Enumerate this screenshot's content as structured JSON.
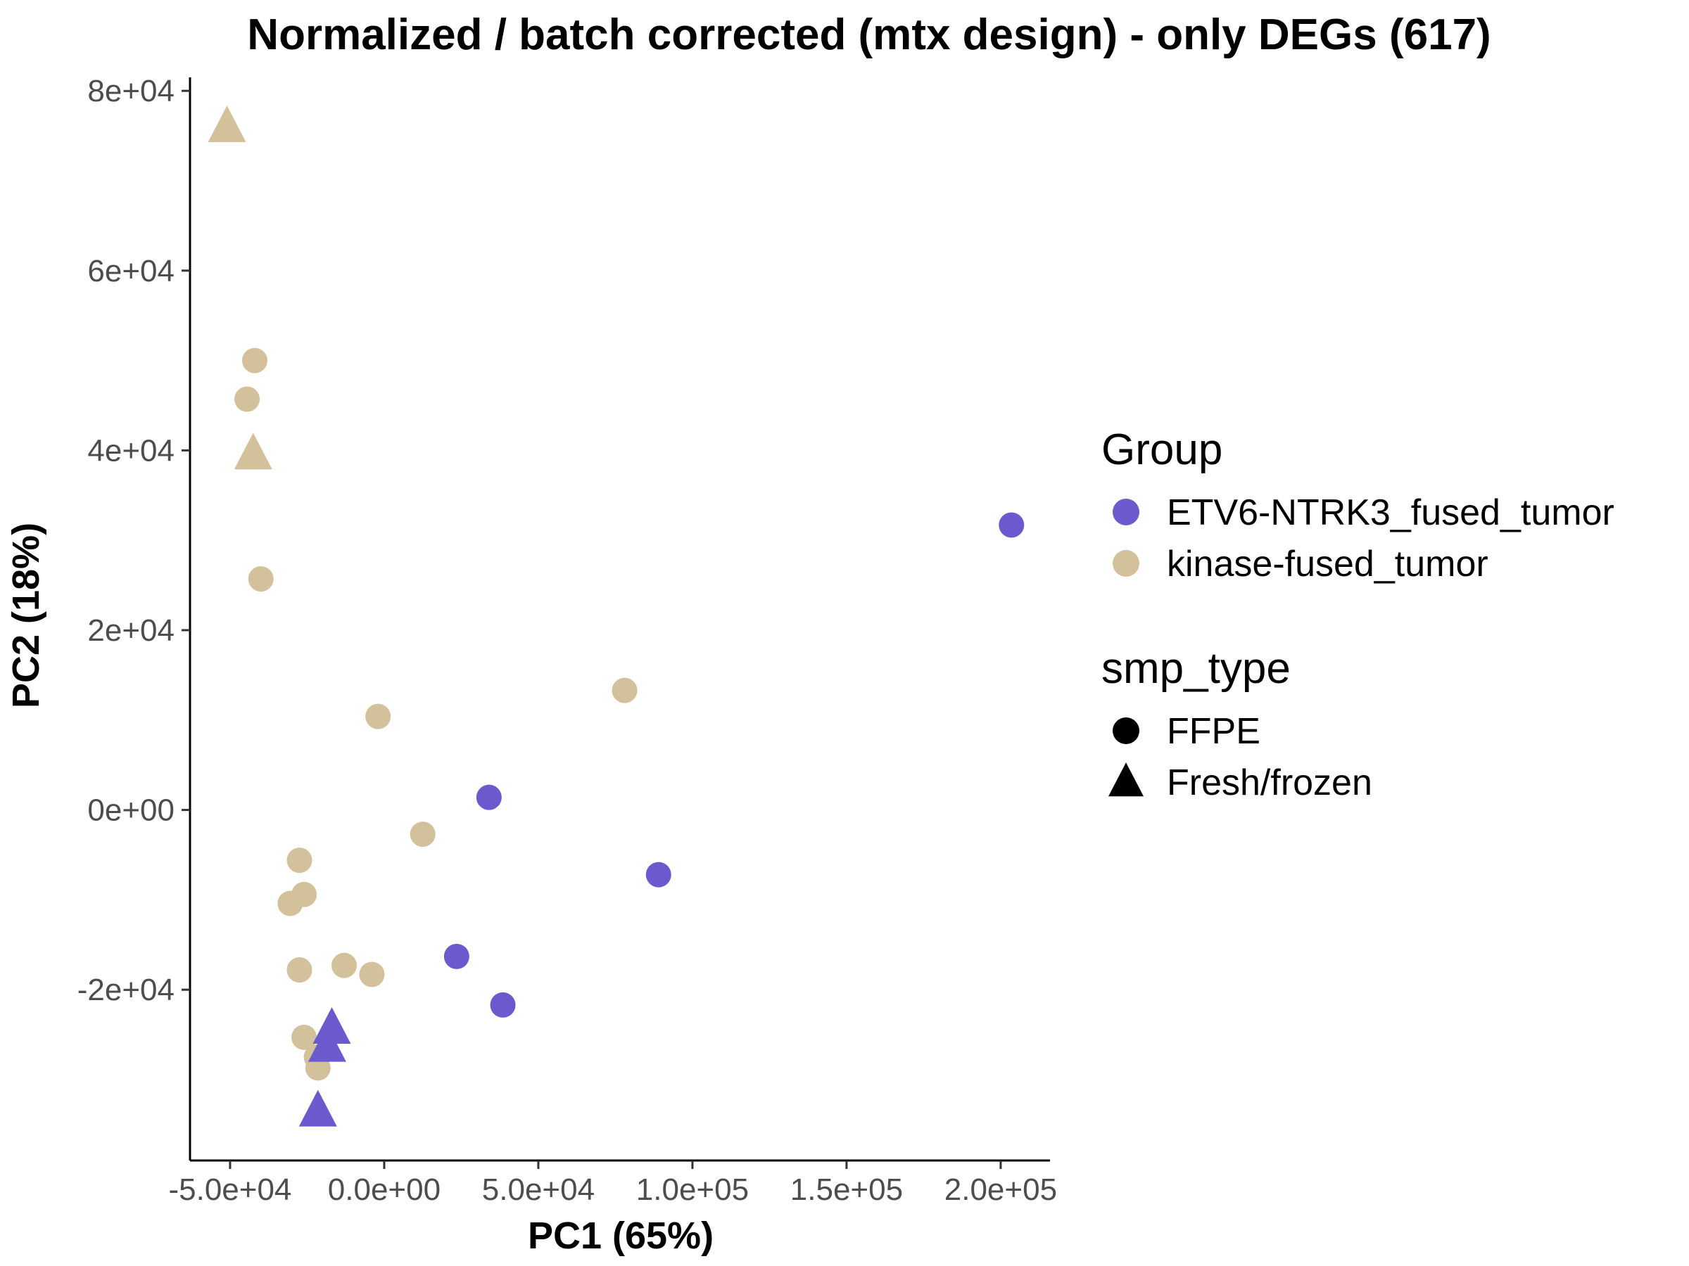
{
  "chart_data": {
    "type": "scatter",
    "title": "Normalized / batch corrected (mtx design) - only DEGs (617)",
    "xlabel": "PC1 (65%)",
    "ylabel": "PC2 (18%)",
    "xlim": [
      -63000,
      216000
    ],
    "ylim": [
      -39000,
      81500
    ],
    "x_ticks": [
      -50000,
      0,
      50000,
      100000,
      150000,
      200000
    ],
    "x_tick_labels": [
      "-5.0e+04",
      "0.0e+00",
      "5.0e+04",
      "1.0e+05",
      "1.5e+05",
      "2.0e+05"
    ],
    "y_ticks": [
      -20000,
      0,
      20000,
      40000,
      60000,
      80000
    ],
    "y_tick_labels": [
      "-2e+04",
      "0e+00",
      "2e+04",
      "4e+04",
      "6e+04",
      "8e+04"
    ],
    "grid": false,
    "legend_position": "right",
    "legends": [
      {
        "title": "Group",
        "entries": [
          {
            "label": "ETV6-NTRK3_fused_tumor",
            "color": "#6a5acd",
            "shape": "circle"
          },
          {
            "label": "kinase-fused_tumor",
            "color": "#d2c19b",
            "shape": "circle"
          }
        ]
      },
      {
        "title": "smp_type",
        "entries": [
          {
            "label": "FFPE",
            "color": "#000000",
            "shape": "circle"
          },
          {
            "label": "Fresh/frozen",
            "color": "#000000",
            "shape": "triangle"
          }
        ]
      }
    ],
    "group_colors": {
      "ETV6-NTRK3_fused_tumor": "#6a5acd",
      "kinase-fused_tumor": "#d2c19b"
    },
    "type_shapes": {
      "FFPE": "circle",
      "Fresh/frozen": "triangle"
    },
    "points": [
      {
        "x": -51000,
        "y": 76000,
        "group": "kinase-fused_tumor",
        "smp_type": "Fresh/frozen"
      },
      {
        "x": -42000,
        "y": 50000,
        "group": "kinase-fused_tumor",
        "smp_type": "FFPE"
      },
      {
        "x": -44500,
        "y": 45700,
        "group": "kinase-fused_tumor",
        "smp_type": "FFPE"
      },
      {
        "x": -42500,
        "y": 39600,
        "group": "kinase-fused_tumor",
        "smp_type": "Fresh/frozen"
      },
      {
        "x": -40000,
        "y": 25700,
        "group": "kinase-fused_tumor",
        "smp_type": "FFPE"
      },
      {
        "x": -2000,
        "y": 10400,
        "group": "kinase-fused_tumor",
        "smp_type": "FFPE"
      },
      {
        "x": 78000,
        "y": 13300,
        "group": "kinase-fused_tumor",
        "smp_type": "FFPE"
      },
      {
        "x": 12500,
        "y": -2700,
        "group": "kinase-fused_tumor",
        "smp_type": "FFPE"
      },
      {
        "x": -27500,
        "y": -5600,
        "group": "kinase-fused_tumor",
        "smp_type": "FFPE"
      },
      {
        "x": -26000,
        "y": -9400,
        "group": "kinase-fused_tumor",
        "smp_type": "FFPE"
      },
      {
        "x": -30500,
        "y": -10400,
        "group": "kinase-fused_tumor",
        "smp_type": "FFPE"
      },
      {
        "x": -27500,
        "y": -17800,
        "group": "kinase-fused_tumor",
        "smp_type": "FFPE"
      },
      {
        "x": -13000,
        "y": -17300,
        "group": "kinase-fused_tumor",
        "smp_type": "FFPE"
      },
      {
        "x": -4000,
        "y": -18300,
        "group": "kinase-fused_tumor",
        "smp_type": "FFPE"
      },
      {
        "x": -26000,
        "y": -25300,
        "group": "kinase-fused_tumor",
        "smp_type": "FFPE"
      },
      {
        "x": -22000,
        "y": -27500,
        "group": "kinase-fused_tumor",
        "smp_type": "FFPE"
      },
      {
        "x": -21500,
        "y": -28700,
        "group": "kinase-fused_tumor",
        "smp_type": "FFPE"
      },
      {
        "x": 203500,
        "y": 31700,
        "group": "ETV6-NTRK3_fused_tumor",
        "smp_type": "FFPE"
      },
      {
        "x": 34000,
        "y": 1400,
        "group": "ETV6-NTRK3_fused_tumor",
        "smp_type": "FFPE"
      },
      {
        "x": 89000,
        "y": -7200,
        "group": "ETV6-NTRK3_fused_tumor",
        "smp_type": "FFPE"
      },
      {
        "x": 23500,
        "y": -16300,
        "group": "ETV6-NTRK3_fused_tumor",
        "smp_type": "FFPE"
      },
      {
        "x": 38500,
        "y": -21700,
        "group": "ETV6-NTRK3_fused_tumor",
        "smp_type": "FFPE"
      },
      {
        "x": -17000,
        "y": -24300,
        "group": "ETV6-NTRK3_fused_tumor",
        "smp_type": "Fresh/frozen"
      },
      {
        "x": -18500,
        "y": -26300,
        "group": "ETV6-NTRK3_fused_tumor",
        "smp_type": "Fresh/frozen"
      },
      {
        "x": -21500,
        "y": -33500,
        "group": "ETV6-NTRK3_fused_tumor",
        "smp_type": "Fresh/frozen"
      }
    ]
  }
}
